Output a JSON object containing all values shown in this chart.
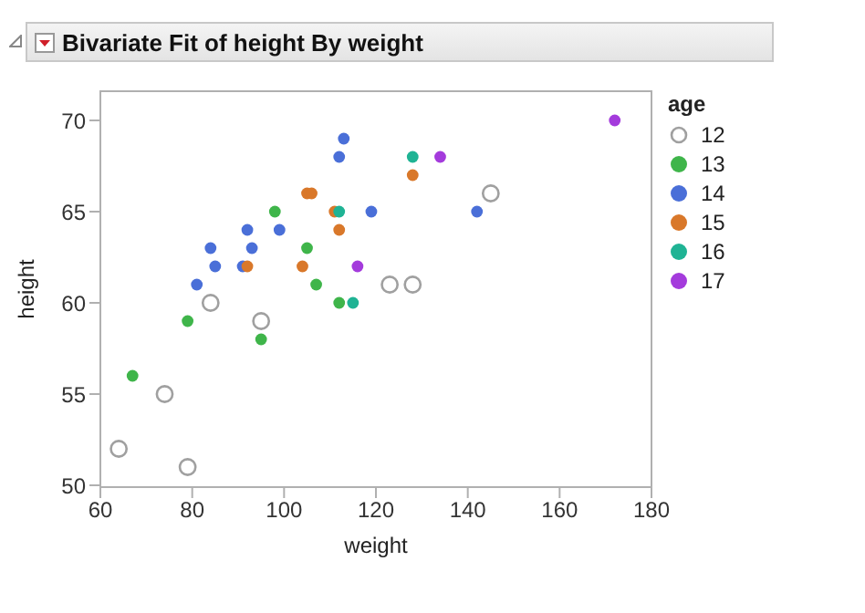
{
  "chart_data": {
    "type": "scatter",
    "title": "Bivariate Fit of height By weight",
    "xlabel": "weight",
    "ylabel": "height",
    "legend_title": "age",
    "legend": "right",
    "grid": false,
    "marker": "circle",
    "xlim": [
      60,
      180
    ],
    "xticks": [
      60,
      80,
      100,
      120,
      140,
      160,
      180
    ],
    "ylim": [
      49.9,
      71.6
    ],
    "yticks": [
      50,
      55,
      60,
      65,
      70
    ],
    "series": [
      {
        "name": "12",
        "color": "#a0a0a0",
        "marker": "circle-open",
        "x": [
          84,
          95,
          74,
          64,
          79,
          145,
          123,
          128
        ],
        "values": [
          60,
          59,
          55,
          52,
          51,
          66,
          61,
          61
        ]
      },
      {
        "name": "13",
        "color": "#3fb54a",
        "x": [
          98,
          105,
          107,
          112,
          79,
          95,
          67
        ],
        "values": [
          65,
          63,
          61,
          60,
          59,
          58,
          56
        ]
      },
      {
        "name": "14",
        "color": "#4a6fd8",
        "x": [
          113,
          112,
          92,
          99,
          84,
          93,
          85,
          91,
          81,
          119,
          142
        ],
        "values": [
          69,
          68,
          64,
          64,
          63,
          63,
          62,
          62,
          61,
          65,
          65
        ]
      },
      {
        "name": "15",
        "color": "#d9782a",
        "x": [
          105,
          106,
          111,
          112,
          92,
          104,
          128
        ],
        "values": [
          66,
          66,
          65,
          64,
          62,
          62,
          67
        ]
      },
      {
        "name": "16",
        "color": "#1fb394",
        "x": [
          112,
          115,
          128
        ],
        "values": [
          65,
          60,
          68
        ]
      },
      {
        "name": "17",
        "color": "#a43bdc",
        "x": [
          116,
          134,
          172
        ],
        "values": [
          62,
          68,
          70
        ]
      }
    ]
  }
}
